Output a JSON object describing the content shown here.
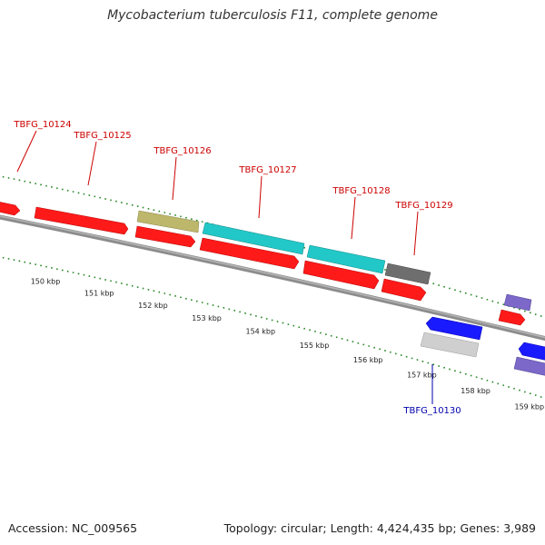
{
  "header": {
    "title": "Mycobacterium tuberculosis F11, complete genome"
  },
  "footer": {
    "accession": "Accession: NC_009565",
    "summary": "Topology: circular; Length: 4,424,435 bp; Genes: 3,989"
  },
  "colors": {
    "backbone": "#8c8c8c",
    "tick": "#2e8b2e",
    "red": "#ff1a1a",
    "cyan": "#22c8c8",
    "olive": "#bdb76b",
    "darkgray": "#6e6e6e",
    "blue": "#1a1aff",
    "lightgray": "#cfcfcf",
    "purple": "#7b68c8",
    "label_red": "#cc0000",
    "label_blue": "#0000aa"
  },
  "axis": {
    "ticks": [
      {
        "kbp": 150,
        "label": "150 kbp"
      },
      {
        "kbp": 151,
        "label": "151 kbp"
      },
      {
        "kbp": 152,
        "label": "152 kbp"
      },
      {
        "kbp": 153,
        "label": "153 kbp"
      },
      {
        "kbp": 154,
        "label": "154 kbp"
      },
      {
        "kbp": 155,
        "label": "155 kbp"
      },
      {
        "kbp": 156,
        "label": "156 kbp"
      },
      {
        "kbp": 157,
        "label": "157 kbp"
      },
      {
        "kbp": 158,
        "label": "158 kbp"
      },
      {
        "kbp": 159,
        "label": "159 kbp"
      }
    ]
  },
  "gene_labels": [
    {
      "id": "TBFG_10124",
      "kbp": 149.6,
      "color": "red",
      "strand": "forward"
    },
    {
      "id": "TBFG_10125",
      "kbp": 150.4,
      "color": "red",
      "strand": "forward"
    },
    {
      "id": "TBFG_10126",
      "kbp": 152.0,
      "color": "red",
      "strand": "forward"
    },
    {
      "id": "TBFG_10127",
      "kbp": 153.2,
      "color": "red",
      "strand": "forward"
    },
    {
      "id": "TBFG_10128",
      "kbp": 155.0,
      "color": "red",
      "strand": "forward"
    },
    {
      "id": "TBFG_10129",
      "kbp": 156.2,
      "color": "red",
      "strand": "forward"
    },
    {
      "id": "TBFG_10130",
      "kbp": 157.0,
      "color": "blue",
      "strand": "reverse"
    }
  ]
}
